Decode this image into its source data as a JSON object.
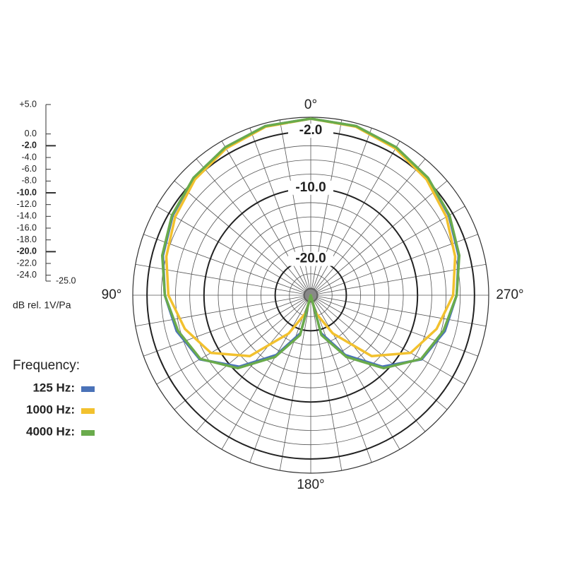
{
  "chart_data": {
    "type": "polar",
    "rlim": [
      -25,
      0
    ],
    "rticks": [
      -24,
      -22,
      -20,
      -18,
      -16,
      -14,
      -12,
      -10,
      -8,
      -6,
      -4,
      -2
    ],
    "rlabels": [
      {
        "value": -2,
        "label": "-2.0"
      },
      {
        "value": -10,
        "label": "-10.0"
      },
      {
        "value": -20,
        "label": "-20.0"
      }
    ],
    "theta_ticks": [
      {
        "value": 0,
        "label": "0°"
      },
      {
        "value": 90,
        "label": "90°"
      },
      {
        "value": 180,
        "label": "180°"
      },
      {
        "value": 270,
        "label": "270°"
      }
    ],
    "scale": {
      "ylim": [
        -25,
        5
      ],
      "yticks": [
        {
          "value": 5,
          "label": "+5.0"
        },
        {
          "value": 0,
          "label": "0.0"
        },
        {
          "value": -2,
          "label": "-2.0"
        },
        {
          "value": -4,
          "label": "-4.0"
        },
        {
          "value": -6,
          "label": "-6.0"
        },
        {
          "value": -8,
          "label": "-8.0"
        },
        {
          "value": -10,
          "label": "-10.0"
        },
        {
          "value": -12,
          "label": "-12.0"
        },
        {
          "value": -14,
          "label": "-14.0"
        },
        {
          "value": -16,
          "label": "-16.0"
        },
        {
          "value": -18,
          "label": "-18.0"
        },
        {
          "value": -20,
          "label": "-20.0"
        },
        {
          "value": -22,
          "label": "-22.0"
        },
        {
          "value": -24,
          "label": "-24.0"
        },
        {
          "value": -25,
          "label": "-25.0"
        }
      ],
      "label": "dB rel. 1V/Pa"
    },
    "legend_title": "Frequency:",
    "theta": [
      0,
      15,
      30,
      45,
      60,
      75,
      90,
      105,
      120,
      135,
      150,
      165,
      180,
      195,
      210,
      225,
      240,
      255,
      270,
      285,
      300,
      315,
      330,
      345,
      360
    ],
    "series": [
      {
        "name": "125 Hz:",
        "color": "#4a72b8",
        "values": [
          -0.2,
          -0.4,
          -1,
          -1.7,
          -2.6,
          -3.5,
          -4.5,
          -5.5,
          -7.0,
          -10.8,
          -15.3,
          -19.5,
          -25,
          -19.5,
          -15.3,
          -10.8,
          -7.0,
          -5.5,
          -4.5,
          -3.5,
          -2.6,
          -1.7,
          -1,
          -0.4,
          -0.2
        ]
      },
      {
        "name": "1000 Hz:",
        "color": "#f2c12e",
        "values": [
          -0.2,
          -0.5,
          -1.2,
          -2,
          -3,
          -4,
          -5,
          -6.7,
          -8.8,
          -12.9,
          -18.8,
          -22.5,
          -25,
          -22.5,
          -18.8,
          -12.9,
          -8.8,
          -6.7,
          -5,
          -4,
          -3,
          -2,
          -1.2,
          -0.5,
          -0.2
        ]
      },
      {
        "name": "4000 Hz:",
        "color": "#6aab4c",
        "values": [
          -0.2,
          -0.4,
          -1,
          -1.7,
          -2.5,
          -3.4,
          -4.5,
          -5.7,
          -7.1,
          -10.5,
          -15,
          -19.2,
          -25,
          -19.2,
          -15,
          -10.5,
          -7.1,
          -5.7,
          -4.5,
          -3.4,
          -2.5,
          -1.7,
          -1,
          -0.4,
          -0.2
        ]
      }
    ]
  }
}
